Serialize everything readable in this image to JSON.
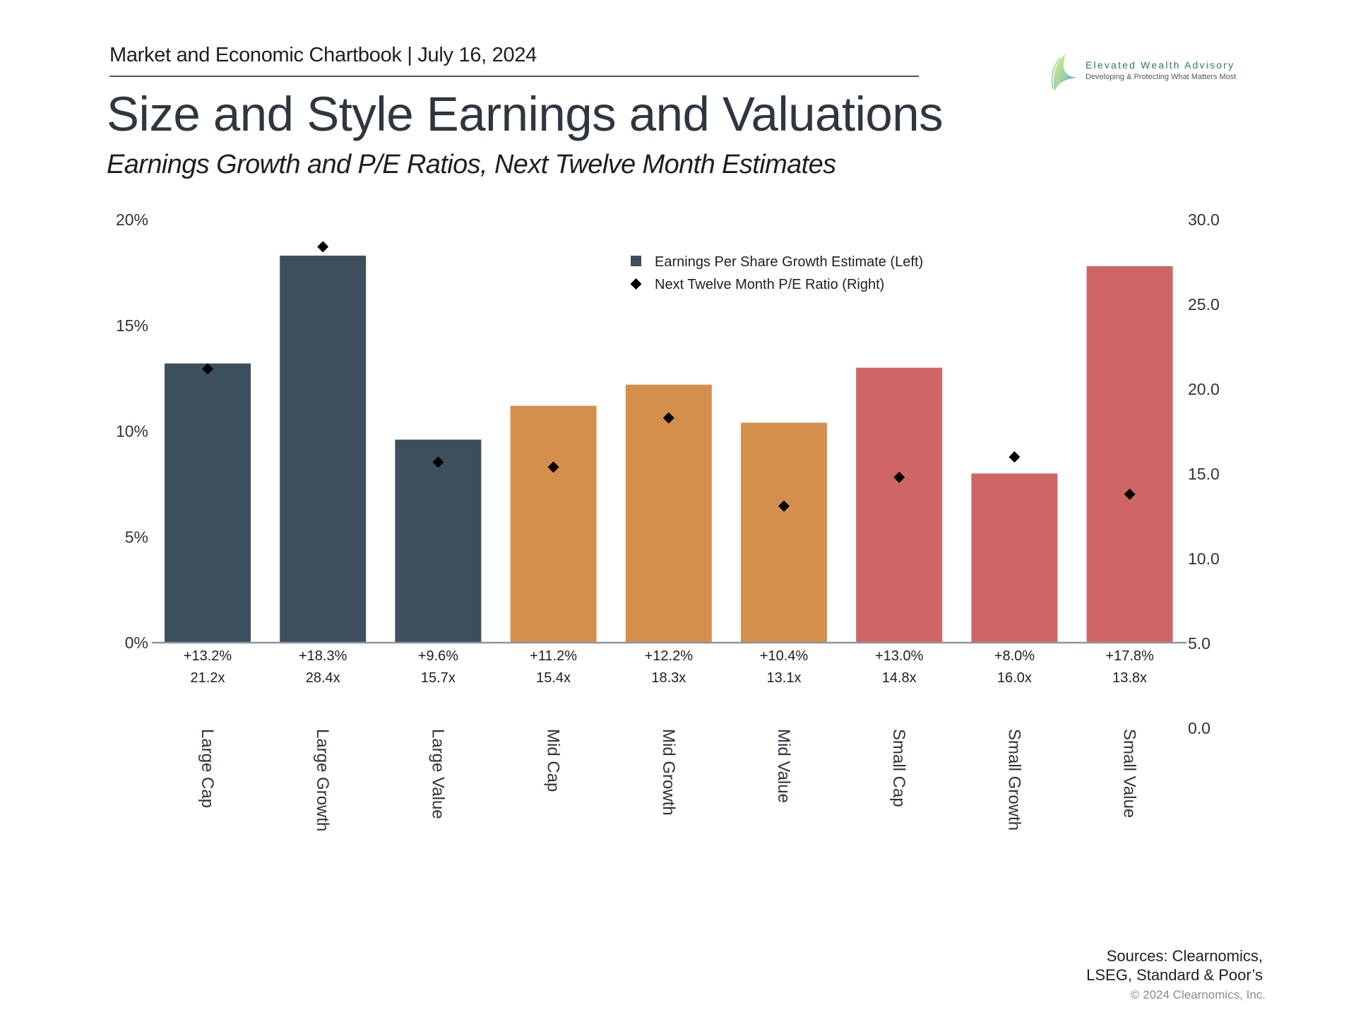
{
  "header": {
    "chartbook_line": "Market and Economic Chartbook | July 16, 2024",
    "title": "Size and Style Earnings and Valuations",
    "subtitle": "Earnings Growth and P/E Ratios, Next Twelve Month Estimates"
  },
  "logo": {
    "name": "Elevated Wealth Advisory",
    "tagline": "Developing & Protecting What Matters Most"
  },
  "footer": {
    "sources_line1": "Sources: Clearnomics,",
    "sources_line2": "LSEG, Standard & Poor’s",
    "copyright": "© 2024 Clearnomics, Inc."
  },
  "colors": {
    "large": "#3d4e5c",
    "mid": "#d58f4d",
    "small": "#cf6665",
    "marker": "#000000",
    "axis": "#8d969d",
    "text": "#2b333b"
  },
  "chart_data": {
    "type": "bar",
    "title": "Size and Style Earnings and Valuations",
    "subtitle": "Earnings Growth and P/E Ratios, Next Twelve Month Estimates",
    "categories": [
      "Large Cap",
      "Large Growth",
      "Large Value",
      "Mid Cap",
      "Mid Growth",
      "Mid Value",
      "Small Cap",
      "Small Growth",
      "Small Value"
    ],
    "groups": [
      "large",
      "large",
      "large",
      "mid",
      "mid",
      "mid",
      "small",
      "small",
      "small"
    ],
    "series": [
      {
        "name": "Earnings Per Share Growth Estimate (Left)",
        "type": "bar",
        "axis": "left",
        "values": [
          13.2,
          18.3,
          9.6,
          11.2,
          12.2,
          10.4,
          13.0,
          8.0,
          17.8
        ],
        "labels": [
          "+13.2%",
          "+18.3%",
          "+9.6%",
          "+11.2%",
          "+12.2%",
          "+10.4%",
          "+13.0%",
          "+8.0%",
          "+17.8%"
        ]
      },
      {
        "name": "Next Twelve Month P/E Ratio (Right)",
        "type": "scatter",
        "marker": "diamond",
        "axis": "right",
        "values": [
          21.2,
          28.4,
          15.7,
          15.4,
          18.3,
          13.1,
          14.8,
          16.0,
          13.8
        ],
        "labels": [
          "21.2x",
          "28.4x",
          "15.7x",
          "15.4x",
          "18.3x",
          "13.1x",
          "14.8x",
          "16.0x",
          "13.8x"
        ]
      }
    ],
    "left_axis": {
      "ylim": [
        0,
        20
      ],
      "ticks": [
        "0%",
        "5%",
        "10%",
        "15%",
        "20%"
      ],
      "tick_values": [
        0,
        5,
        10,
        15,
        20
      ]
    },
    "right_axis": {
      "ylim": [
        0,
        30
      ],
      "ticks": [
        "0.0",
        "5.0",
        "10.0",
        "15.0",
        "20.0",
        "25.0",
        "30.0"
      ],
      "tick_values": [
        0,
        5,
        10,
        15,
        20,
        25,
        30
      ]
    },
    "xlabel": "",
    "ylabel": "",
    "grid": false,
    "legend_position": "top-center"
  }
}
